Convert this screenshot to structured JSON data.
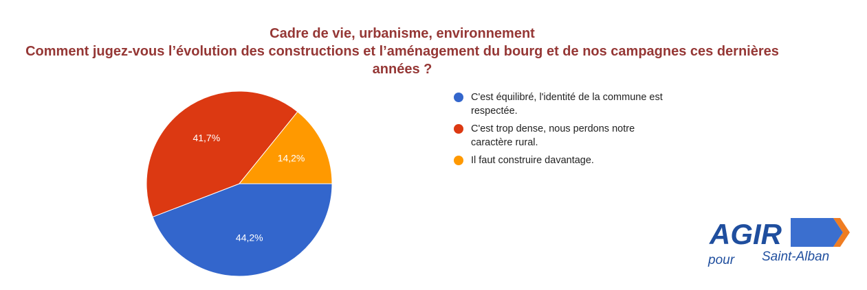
{
  "chart_data": {
    "type": "pie",
    "title": "Cadre de vie, urbanisme, environnement",
    "subtitle": "Comment jugez-vous l’évolution des constructions et l’aménagement du bourg et de nos campagnes ces dernières années ?",
    "categories": [
      "C'est équilibré, l'identité de la commune est respectée.",
      "C'est trop dense, nous perdons notre caractère rural.",
      "Il faut construire davantage."
    ],
    "values": [
      44.2,
      41.7,
      14.2
    ],
    "value_labels": [
      "44,2%",
      "41,7%",
      "14,2%"
    ],
    "colors": [
      "#3366cc",
      "#dc3912",
      "#ff9900"
    ],
    "legend": "right"
  },
  "logo": {
    "name": "AGIR",
    "line_1": "pour",
    "line_2": "Saint-Alban"
  }
}
